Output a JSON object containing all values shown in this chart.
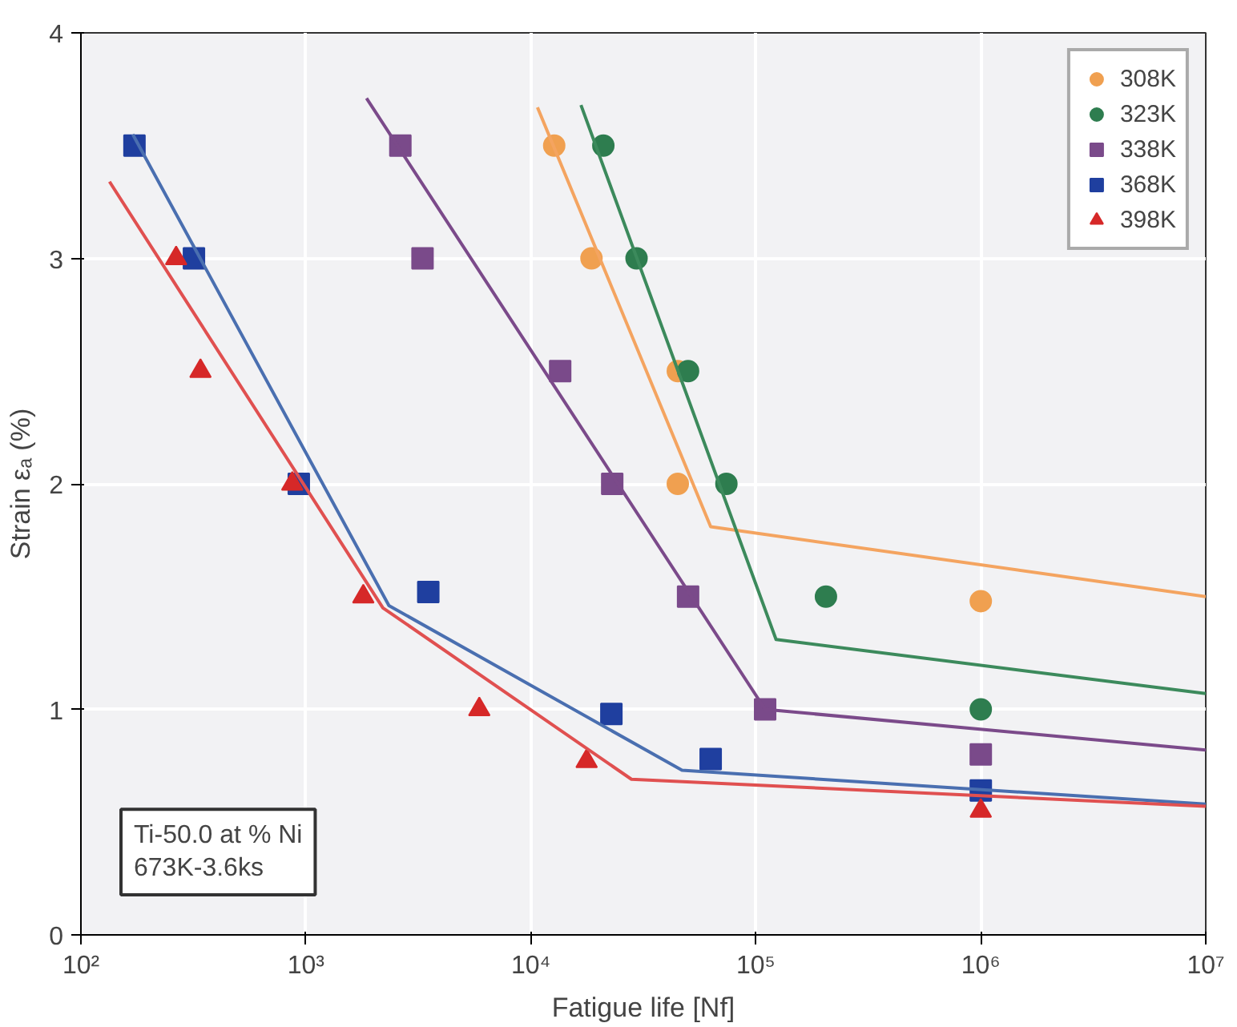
{
  "chart_data": {
    "type": "scatter",
    "xlabel": "Fatigue life [Nf]",
    "ylabel": "Strain εₐ (%)",
    "log": "x",
    "xlim": [
      100,
      10000000
    ],
    "ylim": [
      0,
      4
    ],
    "xticks": [
      {
        "value": 100,
        "label": "10²"
      },
      {
        "value": 1000,
        "label": "10³"
      },
      {
        "value": 10000,
        "label": "10⁴"
      },
      {
        "value": 100000,
        "label": "10⁵"
      },
      {
        "value": 1000000,
        "label": "10⁶"
      },
      {
        "value": 10000000,
        "label": "10⁷"
      }
    ],
    "yticks": [
      0,
      1,
      2,
      3,
      4
    ],
    "grid": true,
    "legend": "top right",
    "annotations": [
      "Ti-50.0 at % Ni\n673K-3.6ks"
    ],
    "series": [
      {
        "name": "308K",
        "marker": "circle",
        "color": "#f0a050",
        "x": [
          12700,
          18600,
          45000,
          45000,
          1000000
        ],
        "values": [
          3.5,
          3.0,
          2.5,
          2.0,
          1.48
        ]
      },
      {
        "name": "323K",
        "marker": "circle",
        "color": "#2e7d4f",
        "x": [
          21000,
          29500,
          50000,
          74000,
          205000,
          1000000
        ],
        "values": [
          3.5,
          3.0,
          2.5,
          2.0,
          1.5,
          1.0
        ]
      },
      {
        "name": "338K",
        "marker": "square",
        "color": "#7a4a8a",
        "x": [
          2630,
          3300,
          13500,
          23000,
          50000,
          110000,
          1000000
        ],
        "values": [
          3.5,
          3.0,
          2.5,
          2.0,
          1.5,
          1.0,
          0.8
        ]
      },
      {
        "name": "368K",
        "marker": "square",
        "color": "#1f3f9f",
        "x": [
          173,
          318,
          930,
          3500,
          22800,
          63000,
          1000000
        ],
        "values": [
          3.5,
          3.0,
          2.0,
          1.52,
          0.98,
          0.78,
          0.64
        ]
      },
      {
        "name": "398K",
        "marker": "triangle",
        "color": "#d62828",
        "x": [
          265,
          340,
          870,
          1800,
          5900,
          17700,
          1000000
        ],
        "values": [
          3.0,
          2.5,
          2.0,
          1.5,
          1.0,
          0.77,
          0.55
        ]
      },
      {
        "type": "line",
        "color": "#f4a460",
        "x": [
          10700,
          63000,
          10000000
        ],
        "values": [
          3.67,
          1.81,
          1.5
        ]
      },
      {
        "type": "line",
        "color": "#3c8a5c",
        "x": [
          16700,
          123000,
          10000000
        ],
        "values": [
          3.68,
          1.31,
          1.07
        ]
      },
      {
        "type": "line",
        "color": "#7b4a8a",
        "x": [
          1860,
          110000,
          10000000
        ],
        "values": [
          3.71,
          1.0,
          0.82
        ]
      },
      {
        "type": "line",
        "color": "#4a6fb0",
        "x": [
          170,
          2340,
          47000,
          10000000
        ],
        "values": [
          3.55,
          1.46,
          0.73,
          0.58
        ]
      },
      {
        "type": "line",
        "color": "#e05050",
        "x": [
          134,
          2200,
          28000,
          10000000
        ],
        "values": [
          3.34,
          1.45,
          0.69,
          0.57
        ]
      }
    ]
  }
}
